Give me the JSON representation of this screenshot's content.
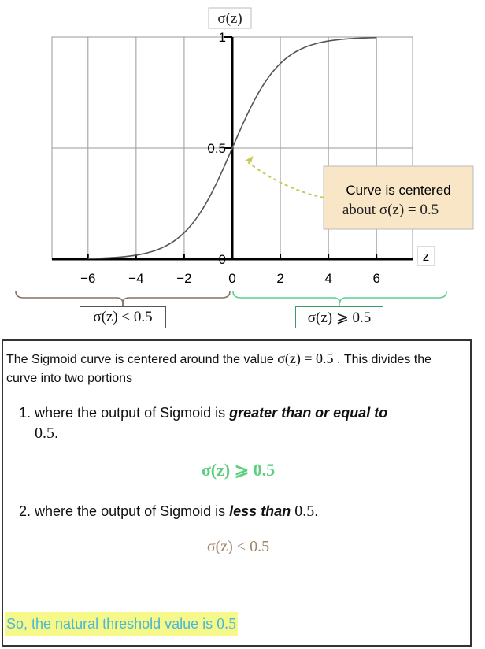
{
  "chart_data": {
    "type": "line",
    "function": "sigma(z) = 1 / (1 + e^(-z))",
    "series": [
      {
        "x": [
          -7,
          -6,
          -5,
          -4,
          -3,
          -2,
          -1,
          0,
          1,
          2,
          3,
          4,
          5,
          6,
          7
        ],
        "y": [
          0.0009,
          0.0025,
          0.0067,
          0.018,
          0.047,
          0.119,
          0.269,
          0.5,
          0.731,
          0.881,
          0.953,
          0.982,
          0.993,
          0.9975,
          0.9991
        ]
      }
    ],
    "xlabel": "z",
    "ylabel": "σ(z)",
    "xlim": [
      -7.5,
      7.5
    ],
    "ylim": [
      0,
      1
    ],
    "x_ticks": [
      "−6",
      "−4",
      "−2",
      "0",
      "2",
      "4",
      "6"
    ],
    "x_tick_values": [
      -6,
      -4,
      -2,
      0,
      2,
      4,
      6
    ],
    "y_ticks": [
      "0",
      "0.5",
      "1"
    ],
    "y_tick_values": [
      0,
      0.5,
      1
    ],
    "grid": true,
    "annotation": {
      "text_line1": "Curve is centered",
      "text_line2": "about σ(z) = 0.5",
      "points_to": {
        "x": 0,
        "y": 0.5
      }
    },
    "regions": [
      {
        "label": "σ(z) < 0.5",
        "x_range": [
          -7.5,
          0
        ],
        "color": "#8a7060"
      },
      {
        "label": "σ(z) ⩾ 0.5",
        "x_range": [
          0,
          7.5
        ],
        "color": "#5ccf8f"
      }
    ]
  },
  "colors": {
    "curve": "#555555",
    "grid": "#999999",
    "annotation_fill": "#f8e6c6",
    "annotation_arrow": "#c8c850",
    "green": "#5ccf7f",
    "brown": "#a08468",
    "highlight": "#f6f88a",
    "conclusion_text": "#4ab8d6"
  },
  "text": {
    "intro_a": "The Sigmoid curve is centered around the value ",
    "intro_math": "σ(z) = 0.5",
    "intro_b": " . This divides the curve into two portions",
    "item1_num": "1.",
    "item1_a": " where the output of Sigmoid is ",
    "item1_bold": "greater than or equal to",
    "item1_math": "0.5",
    "item1_end": ".",
    "formula_ge": "σ(z) ⩾ 0.5",
    "item2_num": "2.",
    "item2_a": "  where the output of Sigmoid is ",
    "item2_bold": "less than",
    "item2_math": "0.5",
    "item2_end": ".",
    "formula_lt": "σ(z) < 0.5",
    "conclusion_a": "So, the natural threshold value is ",
    "conclusion_math": "0.5"
  }
}
